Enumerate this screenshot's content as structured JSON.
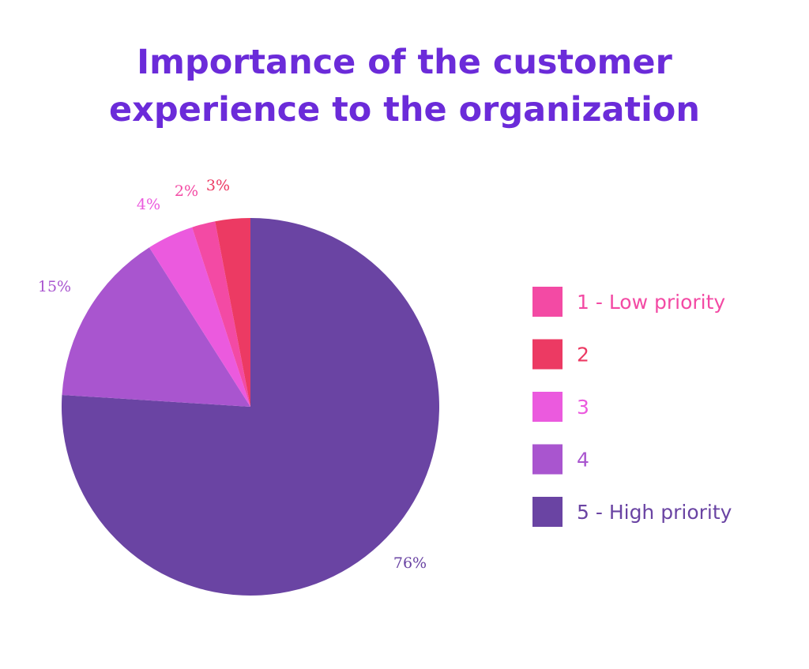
{
  "chart_data": {
    "type": "pie",
    "title": [
      "Importance of the customer",
      "experience to the organization"
    ],
    "title_color": "#6b2bd9",
    "slices": [
      {
        "name": "5 - High priority",
        "value": 76,
        "label": "76%",
        "color": "#6a44a3"
      },
      {
        "name": "4",
        "value": 15,
        "label": "15%",
        "color": "#a955cf"
      },
      {
        "name": "3",
        "value": 4,
        "label": "4%",
        "color": "#eb5ade"
      },
      {
        "name": "1 - Low priority",
        "value": 2,
        "label": "2%",
        "color": "#f34aa4"
      },
      {
        "name": "2",
        "value": 3,
        "label": "3%",
        "color": "#ec3a63"
      }
    ],
    "legend": [
      {
        "name": "1 - Low priority",
        "color": "#f34aa4"
      },
      {
        "name": "2",
        "color": "#ec3a63"
      },
      {
        "name": "3",
        "color": "#eb5ade"
      },
      {
        "name": "4",
        "color": "#a955cf"
      },
      {
        "name": "5 - High priority",
        "color": "#6a44a3"
      }
    ],
    "legend_placement": "right"
  }
}
